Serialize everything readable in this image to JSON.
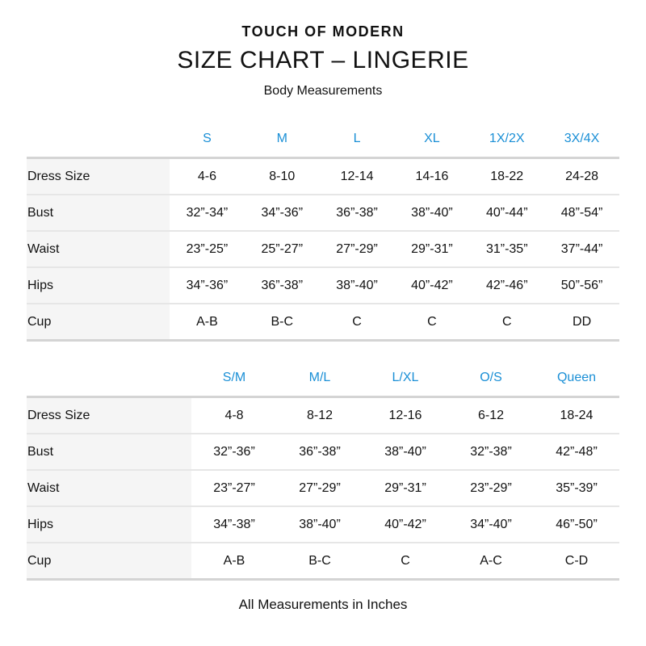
{
  "brand": "TOUCH OF MODERN",
  "title": "SIZE CHART – LINGERIE",
  "subtitle": "Body Measurements",
  "footer": "All Measurements in Inches",
  "colors": {
    "header_text": "#1a8fd6",
    "label_bg": "#f5f5f5",
    "rule": "#d4d4d4"
  },
  "tables": [
    {
      "columns": [
        "S",
        "M",
        "L",
        "XL",
        "1X/2X",
        "3X/4X"
      ],
      "rows": [
        {
          "label": "Dress Size",
          "values": [
            "4-6",
            "8-10",
            "12-14",
            "14-16",
            "18-22",
            "24-28"
          ]
        },
        {
          "label": "Bust",
          "values": [
            "32”-34”",
            "34”-36”",
            "36”-38”",
            "38”-40”",
            "40”-44”",
            "48”-54”"
          ]
        },
        {
          "label": "Waist",
          "values": [
            "23”-25”",
            "25”-27”",
            "27”-29”",
            "29”-31”",
            "31”-35”",
            "37”-44”"
          ]
        },
        {
          "label": "Hips",
          "values": [
            "34”-36”",
            "36”-38”",
            "38”-40”",
            "40”-42”",
            "42”-46”",
            "50”-56”"
          ]
        },
        {
          "label": "Cup",
          "values": [
            "A-B",
            "B-C",
            "C",
            "C",
            "C",
            "DD"
          ]
        }
      ]
    },
    {
      "columns": [
        "S/M",
        "M/L",
        "L/XL",
        "O/S",
        "Queen"
      ],
      "rows": [
        {
          "label": "Dress Size",
          "values": [
            "4-8",
            "8-12",
            "12-16",
            "6-12",
            "18-24"
          ]
        },
        {
          "label": "Bust",
          "values": [
            "32”-36”",
            "36”-38”",
            "38”-40”",
            "32”-38”",
            "42”-48”"
          ]
        },
        {
          "label": "Waist",
          "values": [
            "23”-27”",
            "27”-29”",
            "29”-31”",
            "23”-29”",
            "35”-39”"
          ]
        },
        {
          "label": "Hips",
          "values": [
            "34”-38”",
            "38”-40”",
            "40”-42”",
            "34”-40”",
            "46”-50”"
          ]
        },
        {
          "label": "Cup",
          "values": [
            "A-B",
            "B-C",
            "C",
            "A-C",
            "C-D"
          ]
        }
      ]
    }
  ]
}
